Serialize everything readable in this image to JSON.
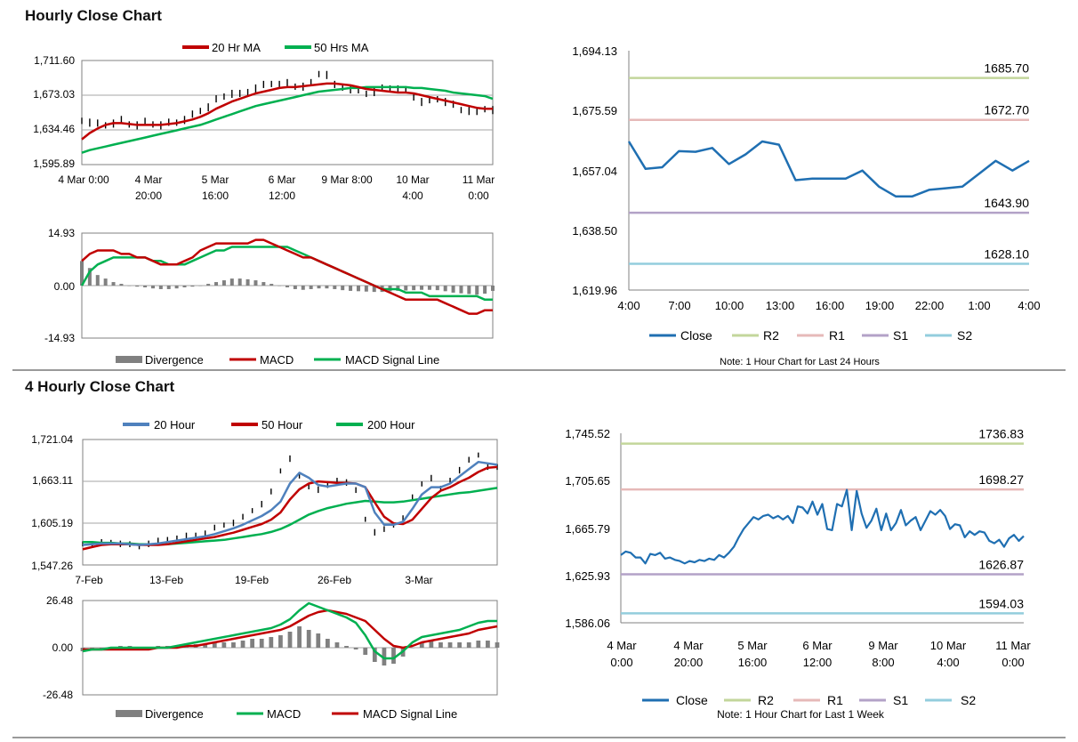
{
  "sections": {
    "hourly_title": "Hourly Close Chart",
    "four_hourly_title": "4 Hourly Close Chart"
  },
  "colors": {
    "close": "#1f6fb2",
    "r2": "#c3d69b",
    "r1": "#e6b9b8",
    "s1": "#b3a2c7",
    "s2": "#93cddd",
    "ma_red": "#c00000",
    "ma_green": "#00b050",
    "ma_blue": "#4f81bd",
    "price_bars": "#000000",
    "divergence": "#808080"
  },
  "chart_data": [
    {
      "id": "hourly-price",
      "type": "line",
      "title": "",
      "legend": [
        "20 Hr MA",
        "50 Hrs MA"
      ],
      "y_ticks": [
        "1,711.60",
        "1,673.03",
        "1,634.46",
        "1,595.89"
      ],
      "ylim": [
        1595.89,
        1711.6
      ],
      "x_ticks": [
        {
          "line1": "4 Mar 0:00",
          "line2": ""
        },
        {
          "line1": "4 Mar",
          "line2": "20:00"
        },
        {
          "line1": "5 Mar",
          "line2": "16:00"
        },
        {
          "line1": "6 Mar",
          "line2": "12:00"
        },
        {
          "line1": "9 Mar 8:00",
          "line2": ""
        },
        {
          "line1": "10 Mar",
          "line2": "4:00"
        },
        {
          "line1": "11 Mar",
          "line2": "0:00"
        }
      ],
      "series": [
        {
          "name": "Price",
          "color": "#000000",
          "values": [
            1645,
            1643,
            1641,
            1640,
            1642,
            1645,
            1641,
            1640,
            1643,
            1641,
            1640,
            1642,
            1643,
            1646,
            1651,
            1656,
            1660,
            1668,
            1672,
            1675,
            1674,
            1677,
            1681,
            1684,
            1686,
            1685,
            1686,
            1683,
            1683,
            1686,
            1697,
            1696,
            1684,
            1682,
            1680,
            1678,
            1675,
            1677,
            1680,
            1681,
            1680,
            1678,
            1671,
            1666,
            1667,
            1669,
            1666,
            1662,
            1657,
            1656,
            1654,
            1658,
            1657
          ]
        },
        {
          "name": "20 Hr MA",
          "color": "#c00000",
          "values": [
            1624,
            1631,
            1636,
            1640,
            1642,
            1642,
            1641,
            1640,
            1640,
            1640,
            1640,
            1641,
            1642,
            1644,
            1646,
            1649,
            1653,
            1658,
            1662,
            1666,
            1669,
            1672,
            1675,
            1677,
            1679,
            1681,
            1682,
            1682,
            1683,
            1684,
            1685,
            1686,
            1686,
            1685,
            1684,
            1682,
            1680,
            1679,
            1678,
            1677,
            1676,
            1676,
            1675,
            1673,
            1671,
            1669,
            1667,
            1665,
            1663,
            1661,
            1659,
            1658,
            1658
          ]
        },
        {
          "name": "50 Hrs MA",
          "color": "#00b050",
          "values": [
            1609,
            1612,
            1614,
            1616,
            1618,
            1620,
            1622,
            1624,
            1626,
            1628,
            1630,
            1632,
            1634,
            1636,
            1638,
            1640,
            1643,
            1646,
            1649,
            1652,
            1655,
            1658,
            1661,
            1663,
            1665,
            1667,
            1669,
            1671,
            1673,
            1675,
            1677,
            1678,
            1679,
            1680,
            1681,
            1681,
            1682,
            1682,
            1682,
            1682,
            1682,
            1682,
            1681,
            1681,
            1680,
            1679,
            1678,
            1676,
            1675,
            1674,
            1673,
            1672,
            1669
          ]
        }
      ]
    },
    {
      "id": "hourly-macd",
      "type": "line",
      "legend": [
        "Divergence",
        "MACD",
        "MACD Signal Line"
      ],
      "y_ticks": [
        "14.93",
        "0.00",
        "-14.93"
      ],
      "ylim": [
        -14.93,
        14.93
      ],
      "series": [
        {
          "name": "Divergence",
          "color": "#808080",
          "values": [
            7,
            5,
            3,
            2,
            1,
            0.5,
            0,
            -0.3,
            -0.5,
            -0.8,
            -1,
            -1,
            -0.8,
            -0.5,
            -0.3,
            0,
            0.5,
            1,
            1.5,
            2,
            2,
            1.8,
            1.5,
            1,
            0.5,
            0,
            -0.5,
            -1,
            -1.2,
            -1,
            -0.8,
            -0.8,
            -1,
            -1.3,
            -1.5,
            -1.6,
            -1.7,
            -1.8,
            -1.8,
            -1.6,
            -1.5,
            -1.4,
            -1.3,
            -1.2,
            -1.2,
            -1.3,
            -1.6,
            -2,
            -2.2,
            -2.4,
            -2.6,
            -2.3,
            -1.5
          ]
        },
        {
          "name": "MACD",
          "color": "#c00000",
          "values": [
            7,
            9,
            10,
            10,
            10,
            9,
            9,
            8,
            8,
            7,
            6,
            6,
            6,
            7,
            8,
            10,
            11,
            12,
            12,
            12,
            12,
            12,
            13,
            13,
            12,
            11,
            10,
            9,
            8,
            8,
            7,
            6,
            5,
            4,
            3,
            2,
            1,
            0,
            -1,
            -2,
            -3,
            -4,
            -4,
            -4,
            -4,
            -4,
            -5,
            -6,
            -7,
            -8,
            -8,
            -7,
            -7
          ]
        },
        {
          "name": "MACD Signal Line",
          "color": "#00b050",
          "values": [
            0,
            4,
            6,
            7,
            8,
            8,
            8,
            8,
            8,
            7,
            7,
            6,
            6,
            6,
            7,
            8,
            9,
            10,
            10,
            11,
            11,
            11,
            11,
            11,
            11,
            11,
            11,
            10,
            9,
            8,
            7,
            6,
            5,
            4,
            3,
            2,
            1,
            0,
            -1,
            -1,
            -1,
            -2,
            -2,
            -2,
            -3,
            -3,
            -3,
            -3,
            -3,
            -3,
            -3,
            -4,
            -4
          ]
        }
      ]
    },
    {
      "id": "hourly-24h",
      "type": "line",
      "note": "Note: 1 Hour Chart for Last 24 Hours",
      "y_ticks": [
        "1,694.13",
        "1,675.59",
        "1,657.04",
        "1,638.50",
        "1,619.96"
      ],
      "ylim": [
        1619.96,
        1694.13
      ],
      "x_ticks": [
        "4:00",
        "7:00",
        "10:00",
        "13:00",
        "16:00",
        "19:00",
        "22:00",
        "1:00",
        "4:00"
      ],
      "x": [
        4,
        5,
        6,
        7,
        8,
        9,
        10,
        11,
        12,
        13,
        14,
        15,
        16,
        17,
        18,
        19,
        20,
        21,
        22,
        23,
        24,
        25,
        26,
        27,
        28
      ],
      "series": [
        {
          "name": "Close",
          "color": "#1f6fb2",
          "values": [
            1666,
            1657.5,
            1658,
            1663,
            1662.8,
            1664,
            1659,
            1662,
            1666,
            1665,
            1654,
            1654.5,
            1654.5,
            1654.5,
            1657,
            1652,
            1649,
            1649,
            1651,
            1651.5,
            1652,
            1656,
            1660,
            1657,
            1660
          ]
        }
      ],
      "levels": [
        {
          "name": "R2",
          "value": 1685.7,
          "label": "1685.70",
          "color": "#c3d69b"
        },
        {
          "name": "R1",
          "value": 1672.7,
          "label": "1672.70",
          "color": "#e6b9b8"
        },
        {
          "name": "S1",
          "value": 1643.9,
          "label": "1643.90",
          "color": "#b3a2c7"
        },
        {
          "name": "S2",
          "value": 1628.1,
          "label": "1628.10",
          "color": "#93cddd"
        }
      ],
      "legend": [
        "Close",
        "R2",
        "R1",
        "S1",
        "S2"
      ]
    },
    {
      "id": "four-hourly-price",
      "type": "line",
      "legend": [
        "20 Hour",
        "50 Hour",
        "200 Hour"
      ],
      "y_ticks": [
        "1,721.04",
        "1,663.11",
        "1,605.19",
        "1,547.26"
      ],
      "ylim": [
        1547.26,
        1721.04
      ],
      "x_ticks": [
        "7-Feb",
        "13-Feb",
        "19-Feb",
        "26-Feb",
        "3-Mar"
      ],
      "series": [
        {
          "name": "Price",
          "color": "#000000",
          "values": [
            1577,
            1576,
            1578,
            1579,
            1577,
            1575,
            1573,
            1577,
            1580,
            1583,
            1584,
            1587,
            1589,
            1591,
            1598,
            1603,
            1606,
            1613,
            1623,
            1632,
            1648,
            1678,
            1695,
            1670,
            1656,
            1652,
            1657,
            1665,
            1662,
            1650,
            1611,
            1593,
            1596,
            1603,
            1612,
            1640,
            1660,
            1668,
            1652,
            1665,
            1679,
            1692,
            1700,
            1684,
            1682
          ]
        },
        {
          "name": "20 Hour",
          "color": "#4f81bd",
          "values": [
            1575,
            1576,
            1577,
            1577,
            1577,
            1576,
            1575,
            1576,
            1577,
            1579,
            1581,
            1583,
            1585,
            1587,
            1590,
            1594,
            1598,
            1603,
            1609,
            1615,
            1623,
            1635,
            1660,
            1675,
            1668,
            1658,
            1656,
            1658,
            1660,
            1660,
            1655,
            1620,
            1603,
            1603,
            1607,
            1625,
            1645,
            1655,
            1655,
            1660,
            1670,
            1680,
            1690,
            1688,
            1686
          ]
        },
        {
          "name": "50 Hour",
          "color": "#c00000",
          "values": [
            1569,
            1572,
            1575,
            1576,
            1576,
            1576,
            1575,
            1575,
            1575,
            1576,
            1578,
            1580,
            1582,
            1584,
            1586,
            1589,
            1592,
            1596,
            1600,
            1604,
            1610,
            1620,
            1638,
            1652,
            1660,
            1663,
            1662,
            1661,
            1661,
            1660,
            1655,
            1634,
            1614,
            1605,
            1604,
            1610,
            1625,
            1640,
            1650,
            1655,
            1662,
            1668,
            1676,
            1682,
            1683
          ]
        },
        {
          "name": "200 Hour",
          "color": "#00b050",
          "values": [
            1579,
            1579,
            1578,
            1578,
            1577,
            1577,
            1576,
            1576,
            1576,
            1576,
            1577,
            1578,
            1579,
            1580,
            1581,
            1582,
            1584,
            1586,
            1588,
            1590,
            1593,
            1597,
            1603,
            1610,
            1617,
            1622,
            1626,
            1629,
            1632,
            1634,
            1636,
            1635,
            1634,
            1634,
            1635,
            1637,
            1639,
            1641,
            1643,
            1645,
            1647,
            1648,
            1650,
            1652,
            1654
          ]
        }
      ]
    },
    {
      "id": "four-hourly-macd",
      "type": "line",
      "legend": [
        "Divergence",
        "MACD",
        "MACD Signal Line"
      ],
      "y_ticks": [
        "26.48",
        "0.00",
        "-26.48"
      ],
      "ylim": [
        -26.48,
        26.48
      ],
      "series": [
        {
          "name": "Divergence",
          "color": "#808080",
          "values": [
            -2,
            -1,
            -1,
            0,
            1,
            1,
            0,
            0,
            1,
            1,
            1,
            2,
            2,
            2,
            3,
            3,
            3,
            4,
            5,
            5,
            6,
            7,
            9,
            12,
            10,
            8,
            5,
            3,
            1,
            -1,
            -4,
            -8,
            -10,
            -9,
            -5,
            0,
            3,
            4,
            3,
            3,
            3,
            3,
            4,
            4,
            3
          ]
        },
        {
          "name": "MACD",
          "color": "#00b050",
          "values": [
            -2,
            -1,
            -1,
            0,
            0,
            0,
            0,
            0,
            0,
            0,
            1,
            2,
            3,
            4,
            5,
            6,
            7,
            8,
            9,
            10,
            11,
            13,
            16,
            21,
            25,
            23,
            21,
            19,
            17,
            14,
            7,
            -2,
            -6,
            -6,
            -2,
            3,
            6,
            7,
            8,
            9,
            10,
            12,
            14,
            15,
            15
          ]
        },
        {
          "name": "MACD Signal Line",
          "color": "#c00000",
          "values": [
            -1,
            -1,
            -1,
            -1,
            -1,
            -1,
            -1,
            -1,
            0,
            0,
            0,
            1,
            1,
            2,
            3,
            4,
            5,
            6,
            7,
            8,
            9,
            10,
            12,
            15,
            18,
            20,
            21,
            20,
            19,
            17,
            15,
            10,
            5,
            1,
            0,
            1,
            3,
            4,
            5,
            6,
            7,
            8,
            10,
            11,
            12
          ]
        }
      ]
    },
    {
      "id": "four-hourly-week",
      "type": "line",
      "note": "Note: 1 Hour Chart for Last 1 Week",
      "y_ticks": [
        "1,745.52",
        "1,705.65",
        "1,665.79",
        "1,625.93",
        "1,586.06"
      ],
      "ylim": [
        1586.06,
        1745.52
      ],
      "x_ticks": [
        {
          "line1": "4 Mar",
          "line2": "0:00"
        },
        {
          "line1": "4 Mar",
          "line2": "20:00"
        },
        {
          "line1": "5 Mar",
          "line2": "16:00"
        },
        {
          "line1": "6 Mar",
          "line2": "12:00"
        },
        {
          "line1": "9 Mar",
          "line2": "8:00"
        },
        {
          "line1": "10 Mar",
          "line2": "4:00"
        },
        {
          "line1": "11 Mar",
          "line2": "0:00"
        }
      ],
      "series": [
        {
          "name": "Close",
          "color": "#1f6fb2",
          "values": [
            1643,
            1646,
            1645,
            1641,
            1641,
            1636,
            1644,
            1643,
            1645,
            1640,
            1641,
            1639,
            1638,
            1636,
            1638,
            1637,
            1639,
            1638,
            1640,
            1639,
            1643,
            1641,
            1645,
            1650,
            1658,
            1665,
            1670,
            1675,
            1673,
            1676,
            1677,
            1674,
            1676,
            1673,
            1676,
            1670,
            1684,
            1683,
            1678,
            1688,
            1677,
            1686,
            1665,
            1664,
            1686,
            1684,
            1698,
            1664,
            1697,
            1678,
            1666,
            1672,
            1682,
            1664,
            1678,
            1664,
            1670,
            1681,
            1668,
            1672,
            1675,
            1664,
            1672,
            1680,
            1677,
            1681,
            1676,
            1665,
            1669,
            1668,
            1658,
            1663,
            1660,
            1663,
            1662,
            1655,
            1653,
            1656,
            1650,
            1657,
            1660,
            1655,
            1659
          ]
        }
      ],
      "levels": [
        {
          "name": "R2",
          "value": 1736.83,
          "label": "1736.83",
          "color": "#c3d69b"
        },
        {
          "name": "R1",
          "value": 1698.27,
          "label": "1698.27",
          "color": "#e6b9b8"
        },
        {
          "name": "S1",
          "value": 1626.87,
          "label": "1626.87",
          "color": "#b3a2c7"
        },
        {
          "name": "S2",
          "value": 1594.03,
          "label": "1594.03",
          "color": "#93cddd"
        }
      ],
      "legend": [
        "Close",
        "R2",
        "R1",
        "S1",
        "S2"
      ]
    }
  ]
}
